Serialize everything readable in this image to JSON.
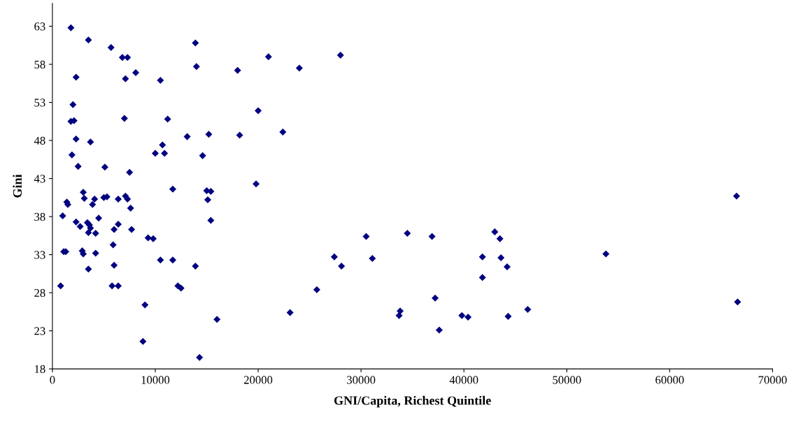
{
  "chart_data": {
    "type": "scatter",
    "xlabel": "GNI/Capita, Richest Quintile",
    "ylabel": "Gini",
    "marker": "diamond",
    "grid": false,
    "xlim": [
      0,
      70000
    ],
    "xticks": [
      0,
      10000,
      20000,
      30000,
      40000,
      50000,
      60000,
      70000
    ],
    "ylim": [
      18,
      66
    ],
    "yticks": [
      18,
      23,
      28,
      33,
      38,
      43,
      48,
      53,
      58,
      63
    ],
    "series": [
      {
        "color": "#000080",
        "x": [
          1800,
          3500,
          5700,
          13900,
          6800,
          7300,
          21000,
          28000,
          8100,
          2300,
          7100,
          10500,
          14000,
          18000,
          24000,
          2000,
          20000,
          1800,
          2100,
          7000,
          11200,
          2300,
          3700,
          13100,
          15200,
          18200,
          22400,
          10700,
          10000,
          10900,
          14600,
          1900,
          2500,
          5100,
          7500,
          11700,
          19800,
          15000,
          15400,
          3000,
          3100,
          4100,
          5000,
          5300,
          7100,
          7300,
          6400,
          15100,
          66500,
          1400,
          1500,
          3900,
          7600,
          1000,
          4500,
          15400,
          2300,
          3400,
          3600,
          2700,
          3700,
          6400,
          6000,
          3500,
          4200,
          7700,
          9300,
          9800,
          30500,
          34500,
          36900,
          43000,
          43500,
          1100,
          1300,
          2900,
          3000,
          4200,
          5900,
          10500,
          11700,
          27400,
          31100,
          41800,
          43600,
          53800,
          3500,
          6000,
          13900,
          28100,
          44200,
          41800,
          800,
          5800,
          6400,
          12200,
          12500,
          25700,
          37200,
          66600,
          9000,
          46200,
          33800,
          33700,
          39800,
          40400,
          44300,
          23100,
          16000,
          37600,
          8800,
          14300
        ],
        "values": [
          62.8,
          61.2,
          60.2,
          60.8,
          58.9,
          58.9,
          59.0,
          59.2,
          56.9,
          56.3,
          56.1,
          55.9,
          57.7,
          57.2,
          57.5,
          52.7,
          51.9,
          50.5,
          50.6,
          50.9,
          50.8,
          48.2,
          47.8,
          48.5,
          48.8,
          48.7,
          49.1,
          47.4,
          46.3,
          46.3,
          46.0,
          46.1,
          44.6,
          44.5,
          43.8,
          41.6,
          42.3,
          41.4,
          41.3,
          41.2,
          40.4,
          40.3,
          40.5,
          40.6,
          40.7,
          40.3,
          40.3,
          40.2,
          40.7,
          39.9,
          39.6,
          39.6,
          39.1,
          38.1,
          37.8,
          37.5,
          37.3,
          37.2,
          36.9,
          36.7,
          36.5,
          37.0,
          36.3,
          35.9,
          35.8,
          36.3,
          35.2,
          35.1,
          35.4,
          35.8,
          35.4,
          36.0,
          35.1,
          33.4,
          33.4,
          33.5,
          33.1,
          33.2,
          34.3,
          32.3,
          32.3,
          32.7,
          32.5,
          32.7,
          32.6,
          33.1,
          31.1,
          31.6,
          31.5,
          31.5,
          31.4,
          30.0,
          28.9,
          28.9,
          28.9,
          28.9,
          28.6,
          28.4,
          27.3,
          26.8,
          26.4,
          25.8,
          25.6,
          25.0,
          25.0,
          24.8,
          24.9,
          25.4,
          24.5,
          23.1,
          21.6,
          19.5
        ]
      }
    ]
  }
}
